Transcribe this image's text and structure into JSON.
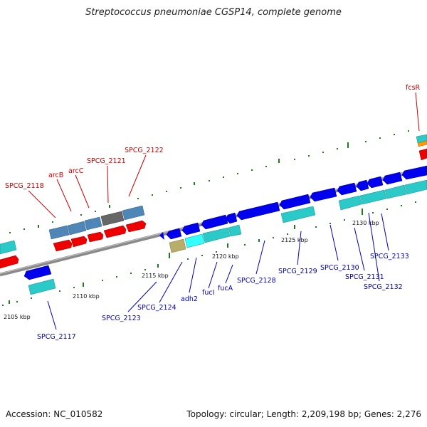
{
  "title": "Streptococcus pneumoniae CGSP14, complete genome",
  "accession": "Accession: NC_010582",
  "topology": "Topology: circular; Length: 2,209,198 bp; Genes: 2,276",
  "colors": {
    "backbone": "#8a8a8a",
    "plus_label": "#cc0000",
    "minus_label": "#0000bb",
    "tick": "#1f7a1f",
    "cds_blue": "#0000ee",
    "rna_cyan": "#2cc9c9",
    "steel": "#4f86b8",
    "red": "#ee0000",
    "gray": "#666666",
    "khaki": "#b8ae6a",
    "orange": "#ff9900"
  },
  "scale_labels": [
    "2105 kbp",
    "2110 kbp",
    "2115 kbp",
    "2120 kbp",
    "2125 kbp",
    "2130 kbp"
  ],
  "gene_labels_plus": [
    "SPCG_2118",
    "arcB",
    "arcC",
    "SPCG_2121",
    "SPCG_2122",
    "fcsR"
  ],
  "gene_labels_minus": [
    "SPCG_2117",
    "SPCG_2123",
    "SPCG_2124",
    "adh2",
    "fucI",
    "fucA",
    "SPCG_2128",
    "SPCG_2129",
    "SPCG_2130",
    "SPCG_2131",
    "SPCG_2132",
    "SPCG_2133"
  ]
}
